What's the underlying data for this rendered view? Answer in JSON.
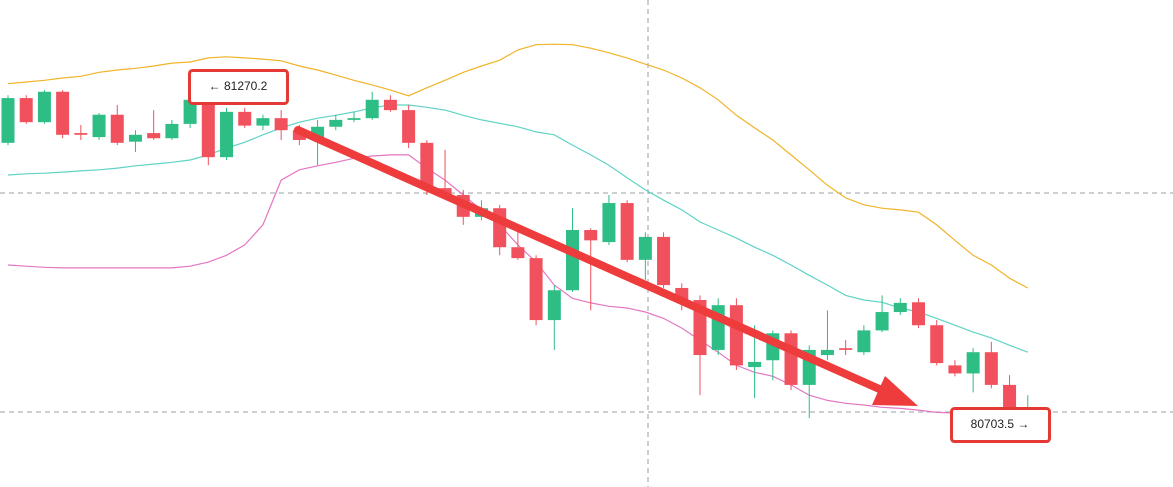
{
  "chart_data": {
    "type": "candlestick",
    "ylim": [
      80578,
      81427
    ],
    "up_color": "#2ebd85",
    "down_color": "#f0515c",
    "open": [
      81178,
      81256,
      81214,
      81267,
      81195,
      81188,
      81227,
      81180,
      81195,
      81186,
      81211,
      81244,
      81153,
      81232,
      81208,
      81221,
      81200,
      81183,
      81206,
      81218,
      81221,
      81253,
      81235,
      81178,
      81099,
      81087,
      81049,
      81064,
      80996,
      80977,
      80869,
      80921,
      81026,
      81005,
      81073,
      80974,
      81014,
      80925,
      80904,
      80817,
      80895,
      80787,
      80799,
      80846,
      80756,
      80808,
      80820,
      80813,
      80851,
      80883,
      80900,
      80860,
      80790,
      80776,
      80813,
      80756,
      80707
    ],
    "high": [
      81261,
      81261,
      81270,
      81270,
      81209,
      81230,
      81244,
      81200,
      81235,
      81218,
      81256,
      81270.2,
      81239,
      81239,
      81227,
      81235,
      81209,
      81218,
      81227,
      81232,
      81267,
      81261,
      81244,
      81183,
      81166,
      81096,
      81078,
      81070,
      81026,
      80982,
      80930,
      81064,
      81029,
      81087,
      81078,
      81022,
      81022,
      80933,
      80912,
      80907,
      80907,
      80860,
      80851,
      80851,
      80825,
      80886,
      80834,
      80860,
      80912,
      80907,
      80907,
      80869,
      80799,
      80820,
      80831,
      80773,
      80738
    ],
    "low": [
      81174,
      81211,
      81211,
      81186,
      81183,
      81183,
      81174,
      81162,
      81183,
      81183,
      81204,
      81139,
      81148,
      81204,
      81200,
      81183,
      81174,
      81139,
      81200,
      81214,
      81218,
      81232,
      81169,
      81087,
      81082,
      81035,
      81043,
      80982,
      80974,
      80860,
      80817,
      80918,
      80886,
      81000,
      80970,
      80939,
      80925,
      80886,
      80738,
      80808,
      80782,
      80733,
      80764,
      80747,
      80698,
      80799,
      80808,
      80808,
      80848,
      80878,
      80855,
      80790,
      80771,
      80743,
      80750,
      80703.5,
      80703
    ],
    "close": [
      81256,
      81214,
      81267,
      81192,
      81192,
      81227,
      81178,
      81192,
      81186,
      81211,
      81253,
      81153,
      81232,
      81208,
      81221,
      81200,
      81183,
      81206,
      81218,
      81221,
      81253,
      81235,
      81178,
      81099,
      81087,
      81049,
      81064,
      80996,
      80977,
      80869,
      80921,
      81026,
      81008,
      81073,
      80974,
      81014,
      80930,
      80904,
      80808,
      80895,
      80790,
      80796,
      80846,
      80756,
      80817,
      80817,
      80817,
      80851,
      80883,
      80899,
      80860,
      80794,
      80776,
      80813,
      80756,
      80707,
      80712
    ],
    "series": [
      {
        "color": "#f0b429",
        "values": [
          81281,
          81284,
          81287,
          81291,
          81294,
          81301,
          81305,
          81308,
          81312,
          81317,
          81319,
          81326,
          81328,
          81326,
          81324,
          81321,
          81312,
          81305,
          81296,
          81287,
          81279,
          81270,
          81260,
          81274,
          81287,
          81301,
          81312,
          81322,
          81340,
          81349,
          81350,
          81349,
          81343,
          81335,
          81326,
          81315,
          81305,
          81291,
          81274,
          81253,
          81226,
          81204,
          81183,
          81157,
          81131,
          81104,
          81082,
          81070,
          81064,
          81061,
          81057,
          81035,
          81008,
          80982,
          80965,
          80942,
          80925
        ]
      },
      {
        "color": "#5fd3c4",
        "values": [
          81122,
          81124,
          81125,
          81127,
          81129,
          81131,
          81134,
          81138,
          81141,
          81144,
          81148,
          81157,
          81169,
          81179,
          81192,
          81204,
          81214,
          81221,
          81226,
          81232,
          81239,
          81244,
          81244,
          81240,
          81235,
          81226,
          81218,
          81212,
          81206,
          81197,
          81192,
          81174,
          81157,
          81139,
          81117,
          81096,
          81078,
          81061,
          81040,
          81026,
          81012,
          80996,
          80982,
          80965,
          80947,
          80930,
          80912,
          80904,
          80900,
          80890,
          80883,
          80872,
          80860,
          80848,
          80838,
          80825,
          80813
        ]
      },
      {
        "color": "#e377c2",
        "values": [
          80965,
          80963,
          80961,
          80960,
          80960,
          80960,
          80960,
          80960,
          80960,
          80960,
          80963,
          80970,
          80982,
          81000,
          81035,
          81113,
          81131,
          81138,
          81144,
          81151,
          81155,
          81157,
          81157,
          81134,
          81113,
          81087,
          81061,
          81035,
          81000,
          80970,
          80930,
          80907,
          80899,
          80893,
          80890,
          80883,
          80872,
          80855,
          80834,
          80813,
          80790,
          80778,
          80771,
          80756,
          80738,
          80729,
          80724,
          80721,
          80717,
          80715,
          80712,
          80708,
          80707,
          80712,
          80715,
          80712,
          80708
        ]
      }
    ],
    "annotations": [
      {
        "value": 81270.2,
        "label": "← 81270.2"
      },
      {
        "value": 80703.5,
        "label": "80703.5 →"
      }
    ]
  }
}
